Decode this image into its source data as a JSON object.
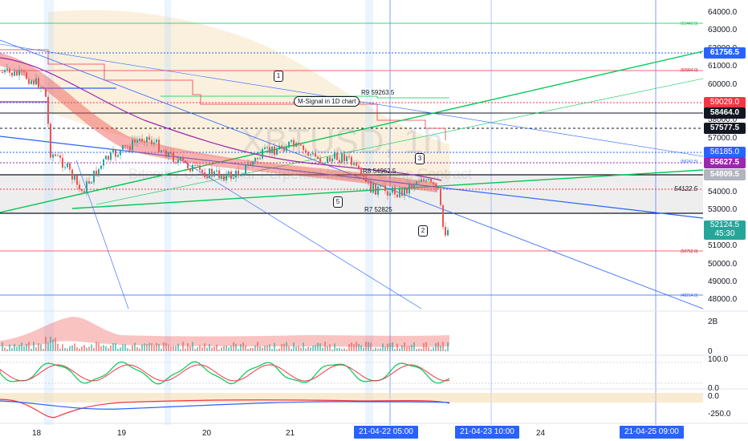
{
  "watermark": {
    "symbol": "XBTUSD, 1h",
    "subtitle": "Bitcoin / USD Dollar Perpetual Inverse Swap Contract"
  },
  "price_axis": {
    "ticks": [
      "64000.0",
      "63000.0",
      "62000.0",
      "61000.0",
      "60000.0",
      "59000.0",
      "58000.0",
      "57000.0",
      "56000.0",
      "55000.0",
      "54000.0",
      "53000.0",
      "52000.0",
      "51000.0",
      "50000.0",
      "49000.0",
      "48000.0"
    ],
    "labels": [
      {
        "text": "61756.5",
        "color": "#2962ff",
        "bold": true
      },
      {
        "text": "59029.0",
        "color": "#f23645",
        "bold": false
      },
      {
        "text": "58464.0",
        "color": "#131722",
        "bold": true
      },
      {
        "text": "57577.5",
        "color": "#131722",
        "bold": true
      },
      {
        "text": "56185.0",
        "color": "#2962ff",
        "bold": false
      },
      {
        "text": "55627.5",
        "color": "#9c27b0",
        "bold": true
      },
      {
        "text": "54809.5",
        "color": "#b2b5be",
        "bold": true
      },
      {
        "text": "52124.5",
        "sub": "45:30",
        "color": "#26a69a",
        "bold": false
      }
    ]
  },
  "indicator_axis": {
    "ticks": [
      "2B",
      "0",
      "100.0",
      "0.0",
      "0.0",
      "-250.0"
    ]
  },
  "time_axis": {
    "ticks": [
      "18",
      "19",
      "20",
      "21",
      "24"
    ],
    "badges": [
      "21-04-22   05:00",
      "21-04-23   10:00",
      "21-04-25   09:00"
    ]
  },
  "annotations": {
    "signal_box": "M-Signal in 1D chart",
    "r9": "R9 59263.5",
    "r8": "R8 54962.5",
    "r7": "R7 52825",
    "level_54122": "54122.5",
    "markers": [
      "1",
      "2",
      "3",
      "5"
    ],
    "small_levels": [
      "(61442.0)",
      "(60904.0)",
      "(56241.5)",
      "(50752.0)",
      "(48214.0)"
    ]
  },
  "colors": {
    "bull": "#26a69a",
    "bear": "#ef5350",
    "green_line": "#00c853",
    "blue_line": "#2962ff",
    "red_line": "#f23645",
    "purple": "#9c27b0"
  }
}
